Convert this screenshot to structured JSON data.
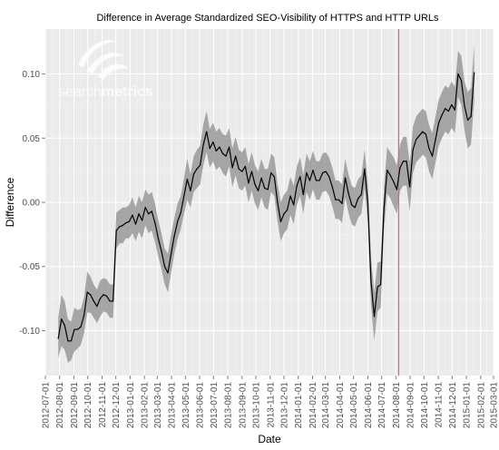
{
  "chart_data": {
    "type": "line",
    "title": "Difference in Average Standardized SEO-Visibility of HTTPS and HTTP URLs",
    "xlabel": "Date",
    "ylabel": "Difference",
    "xlim": [
      "2012-07-01",
      "2015-03-01"
    ],
    "ylim": [
      -0.135,
      0.135
    ],
    "x_ticks": [
      "2012-07-01",
      "2012-08-01",
      "2012-09-01",
      "2012-10-01",
      "2012-11-01",
      "2012-12-01",
      "2013-01-01",
      "2013-02-01",
      "2013-03-01",
      "2013-04-01",
      "2013-05-01",
      "2013-06-01",
      "2013-07-01",
      "2013-08-01",
      "2013-09-01",
      "2013-10-01",
      "2013-11-01",
      "2013-12-01",
      "2014-01-01",
      "2014-02-01",
      "2014-03-01",
      "2014-04-01",
      "2014-05-01",
      "2014-06-01",
      "2014-07-01",
      "2014-08-01",
      "2014-09-01",
      "2014-10-01",
      "2014-11-01",
      "2014-12-01",
      "2015-01-01",
      "2015-02-01",
      "2015-03-01"
    ],
    "y_ticks": [
      0.1,
      0.05,
      0.0,
      -0.05,
      -0.1
    ],
    "y_tick_labels": [
      "0.10",
      "0.05",
      "0.00",
      "-0.05",
      "-0.10"
    ],
    "grid": true,
    "background_color": "#ebebeb",
    "line_color": "#000000",
    "band_color": "#999999",
    "reference_line": {
      "date": "2014-08-07",
      "color": "#e06666"
    },
    "watermark": {
      "text_light": "search",
      "text_bold": "metrics"
    },
    "series": [
      {
        "x": [
          "2012-07-29",
          "2012-08-05",
          "2012-08-12",
          "2012-08-19",
          "2012-08-26",
          "2012-09-02",
          "2012-09-09",
          "2012-09-16",
          "2012-09-23",
          "2012-09-30",
          "2012-10-07",
          "2012-10-14",
          "2012-10-21",
          "2012-10-28",
          "2012-11-04",
          "2012-11-11",
          "2012-11-18",
          "2012-11-25",
          "2012-12-02",
          "2012-12-09",
          "2012-12-16",
          "2012-12-23",
          "2012-12-30",
          "2013-01-06",
          "2013-01-13",
          "2013-01-20",
          "2013-01-27",
          "2013-02-03",
          "2013-02-10",
          "2013-02-17",
          "2013-02-24",
          "2013-03-03",
          "2013-03-10",
          "2013-03-17",
          "2013-03-24",
          "2013-03-31",
          "2013-04-07",
          "2013-04-14",
          "2013-04-21",
          "2013-04-28",
          "2013-05-05",
          "2013-05-12",
          "2013-05-19",
          "2013-05-26",
          "2013-06-02",
          "2013-06-09",
          "2013-06-16",
          "2013-06-23",
          "2013-06-30",
          "2013-07-07",
          "2013-07-14",
          "2013-07-21",
          "2013-07-28",
          "2013-08-04",
          "2013-08-11",
          "2013-08-18",
          "2013-08-25",
          "2013-09-01",
          "2013-09-08",
          "2013-09-15",
          "2013-09-22",
          "2013-09-29",
          "2013-10-06",
          "2013-10-13",
          "2013-10-20",
          "2013-10-27",
          "2013-11-03",
          "2013-11-10",
          "2013-11-17",
          "2013-11-24",
          "2013-12-01",
          "2013-12-08",
          "2013-12-15",
          "2013-12-22",
          "2013-12-29",
          "2014-01-05",
          "2014-01-12",
          "2014-01-19",
          "2014-01-26",
          "2014-02-02",
          "2014-02-09",
          "2014-02-16",
          "2014-02-23",
          "2014-03-02",
          "2014-03-09",
          "2014-03-16",
          "2014-03-23",
          "2014-03-30",
          "2014-04-06",
          "2014-04-13",
          "2014-04-20",
          "2014-04-27",
          "2014-05-04",
          "2014-05-11",
          "2014-05-18",
          "2014-05-25",
          "2014-06-01",
          "2014-06-08",
          "2014-06-15",
          "2014-06-22",
          "2014-06-29",
          "2014-07-06",
          "2014-07-13",
          "2014-07-20",
          "2014-07-27",
          "2014-08-03",
          "2014-08-10",
          "2014-08-17",
          "2014-08-24",
          "2014-08-31",
          "2014-09-07",
          "2014-09-14",
          "2014-09-21",
          "2014-09-28",
          "2014-10-05",
          "2014-10-12",
          "2014-10-19",
          "2014-10-26",
          "2014-11-02",
          "2014-11-09",
          "2014-11-16",
          "2014-11-23",
          "2014-11-30",
          "2014-12-07",
          "2014-12-14",
          "2014-12-21",
          "2014-12-28",
          "2015-01-04",
          "2015-01-11",
          "2015-01-18"
        ],
        "values": [
          -0.106,
          -0.091,
          -0.096,
          -0.108,
          -0.108,
          -0.099,
          -0.099,
          -0.097,
          -0.088,
          -0.07,
          -0.072,
          -0.077,
          -0.081,
          -0.075,
          -0.072,
          -0.073,
          -0.077,
          -0.077,
          -0.022,
          -0.019,
          -0.018,
          -0.016,
          -0.015,
          -0.01,
          -0.017,
          -0.009,
          -0.014,
          -0.004,
          -0.009,
          -0.007,
          -0.016,
          -0.028,
          -0.038,
          -0.05,
          -0.055,
          -0.04,
          -0.026,
          -0.015,
          -0.008,
          0.005,
          0.018,
          0.009,
          0.022,
          0.026,
          0.029,
          0.045,
          0.055,
          0.042,
          0.047,
          0.04,
          0.043,
          0.038,
          0.036,
          0.043,
          0.027,
          0.036,
          0.026,
          0.024,
          0.028,
          0.015,
          0.024,
          0.014,
          0.009,
          0.019,
          0.011,
          0.01,
          0.023,
          0.02,
          0.0,
          -0.015,
          -0.009,
          -0.006,
          0.005,
          -0.002,
          0.013,
          0.02,
          0.006,
          0.023,
          0.017,
          0.025,
          0.017,
          0.017,
          0.023,
          0.024,
          0.02,
          0.012,
          0.002,
          0.002,
          -0.001,
          0.019,
          0.007,
          -0.002,
          -0.004,
          0.003,
          0.006,
          0.026,
          0.0,
          -0.062,
          -0.089,
          -0.066,
          -0.064,
          -0.005,
          0.025,
          0.021,
          0.016,
          0.01,
          0.027,
          0.032,
          0.032,
          0.012,
          0.041,
          0.049,
          0.052,
          0.055,
          0.053,
          0.042,
          0.036,
          0.049,
          0.062,
          0.068,
          0.073,
          0.071,
          0.076,
          0.072,
          0.1,
          0.095,
          0.075,
          0.064,
          0.067,
          0.101
        ],
        "lower": [
          -0.121,
          -0.112,
          -0.115,
          -0.125,
          -0.123,
          -0.116,
          -0.114,
          -0.111,
          -0.102,
          -0.086,
          -0.086,
          -0.09,
          -0.094,
          -0.089,
          -0.085,
          -0.086,
          -0.09,
          -0.09,
          -0.036,
          -0.032,
          -0.032,
          -0.028,
          -0.028,
          -0.024,
          -0.03,
          -0.023,
          -0.028,
          -0.018,
          -0.024,
          -0.022,
          -0.031,
          -0.042,
          -0.052,
          -0.064,
          -0.07,
          -0.055,
          -0.04,
          -0.029,
          -0.021,
          -0.009,
          0.002,
          -0.004,
          0.008,
          0.011,
          0.014,
          0.029,
          0.039,
          0.027,
          0.032,
          0.025,
          0.028,
          0.023,
          0.02,
          0.028,
          0.012,
          0.021,
          0.011,
          0.009,
          0.013,
          0.0,
          0.009,
          -0.001,
          -0.006,
          0.004,
          -0.004,
          -0.006,
          0.008,
          0.005,
          -0.015,
          -0.03,
          -0.024,
          -0.021,
          -0.01,
          -0.017,
          -0.002,
          0.005,
          -0.009,
          0.008,
          0.002,
          0.01,
          0.002,
          0.002,
          0.008,
          0.009,
          0.005,
          -0.003,
          -0.013,
          -0.013,
          -0.016,
          0.004,
          -0.008,
          -0.017,
          -0.019,
          -0.012,
          -0.009,
          0.011,
          -0.016,
          -0.08,
          -0.108,
          -0.085,
          -0.082,
          -0.022,
          0.007,
          0.003,
          -0.003,
          -0.009,
          0.009,
          0.013,
          0.013,
          -0.007,
          0.023,
          0.031,
          0.034,
          0.037,
          0.035,
          0.024,
          0.018,
          0.031,
          0.044,
          0.05,
          0.055,
          0.053,
          0.058,
          0.054,
          0.082,
          0.076,
          0.056,
          0.042,
          0.045,
          0.079
        ],
        "upper": [
          -0.09,
          -0.072,
          -0.077,
          -0.091,
          -0.093,
          -0.082,
          -0.084,
          -0.083,
          -0.074,
          -0.054,
          -0.058,
          -0.064,
          -0.068,
          -0.061,
          -0.059,
          -0.06,
          -0.064,
          -0.064,
          -0.008,
          -0.006,
          -0.004,
          -0.004,
          -0.002,
          0.004,
          -0.004,
          0.005,
          0.0,
          0.01,
          0.006,
          0.008,
          -0.001,
          -0.014,
          -0.024,
          -0.036,
          -0.04,
          -0.025,
          -0.012,
          -0.001,
          0.005,
          0.019,
          0.034,
          0.022,
          0.036,
          0.041,
          0.044,
          0.061,
          0.071,
          0.057,
          0.062,
          0.055,
          0.058,
          0.053,
          0.052,
          0.058,
          0.042,
          0.051,
          0.041,
          0.039,
          0.043,
          0.03,
          0.039,
          0.029,
          0.024,
          0.034,
          0.026,
          0.026,
          0.038,
          0.035,
          0.015,
          0.0,
          0.006,
          0.009,
          0.02,
          0.013,
          0.028,
          0.035,
          0.021,
          0.038,
          0.032,
          0.04,
          0.032,
          0.032,
          0.038,
          0.039,
          0.035,
          0.027,
          0.017,
          0.017,
          0.014,
          0.034,
          0.022,
          0.013,
          0.011,
          0.018,
          0.021,
          0.041,
          0.016,
          -0.044,
          -0.07,
          -0.047,
          -0.046,
          0.012,
          0.043,
          0.039,
          0.035,
          0.029,
          0.045,
          0.051,
          0.051,
          0.031,
          0.059,
          0.067,
          0.07,
          0.073,
          0.071,
          0.06,
          0.054,
          0.067,
          0.08,
          0.086,
          0.091,
          0.089,
          0.094,
          0.09,
          0.118,
          0.114,
          0.094,
          0.086,
          0.089,
          0.123
        ]
      }
    ]
  }
}
